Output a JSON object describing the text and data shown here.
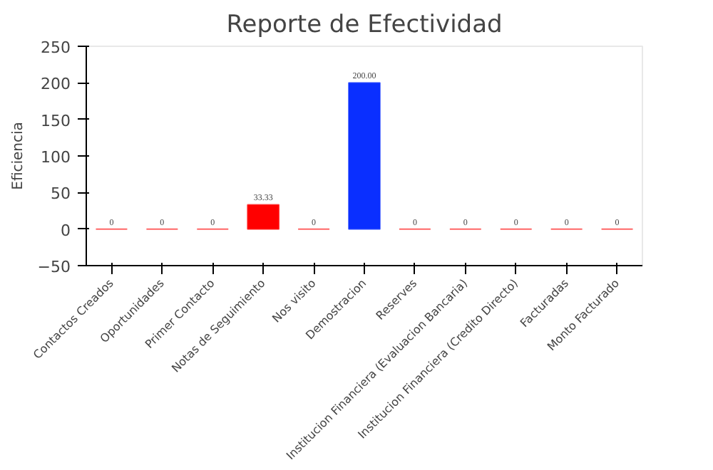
{
  "chart_data": {
    "type": "bar",
    "title": "Reporte de Efectividad",
    "ylabel": "Eficiencia",
    "categories": [
      "Contactos Creados",
      "Oportunidades",
      "Primer Contacto",
      "Notas de Seguimiento",
      "Nos visito",
      "Demostracion",
      "Reserves",
      "Institucion Financiera (Evaluacion Bancaria)",
      "Institucion Financiera (Credito Directo)",
      "Facturadas",
      "Monto Facturado"
    ],
    "values": [
      0,
      0,
      0,
      33.33,
      0,
      200,
      0,
      0,
      0,
      0,
      0
    ],
    "colors": [
      "#ff0000",
      "#ff0000",
      "#ff0000",
      "#ff0000",
      "#ff0000",
      "#0a2fff",
      "#ff0000",
      "#ff0000",
      "#ff0000",
      "#ff0000",
      "#ff0000"
    ],
    "value_labels": [
      "0",
      "0",
      "0",
      "33.33",
      "0",
      "200.00",
      "0",
      "0",
      "0",
      "0",
      "0"
    ],
    "ylim": [
      -50,
      250
    ],
    "yticks": [
      -50,
      0,
      50,
      100,
      150,
      200,
      250
    ],
    "grid": false
  }
}
